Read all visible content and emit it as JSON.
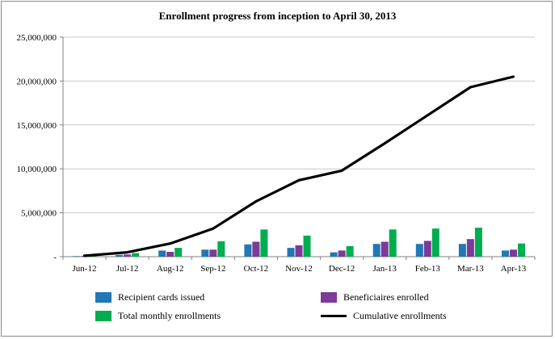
{
  "title": "Enrollment progress from inception to April 30, 2013",
  "colors": {
    "blue": "#2277b4",
    "purple": "#7c3a99",
    "green": "#00ad4f",
    "black": "#000000",
    "grid": "#c9c9c9",
    "axis": "#808080",
    "border": "#8a8a8a"
  },
  "chart_data": {
    "type": "bar",
    "subtype": "grouped bars with cumulative line overlay",
    "title": "Enrollment progress from inception to April 30, 2013",
    "xlabel": "",
    "ylabel": "",
    "ylim": [
      0,
      25000000
    ],
    "grid": true,
    "legend_position": "bottom",
    "categories": [
      "Jun-12",
      "Jul-12",
      "Aug-12",
      "Sep-12",
      "Oct-12",
      "Nov-12",
      "Dec-12",
      "Jan-13",
      "Feb-13",
      "Mar-13",
      "Apr-13"
    ],
    "series": [
      {
        "name": "Recipient cards issued",
        "key": "recipient-cards-issued",
        "color": "#2277b4",
        "values": [
          60000,
          200000,
          700000,
          800000,
          1400000,
          1000000,
          500000,
          1450000,
          1450000,
          1450000,
          700000
        ]
      },
      {
        "name": "Beneficiaires enrolled",
        "key": "beneficiaries-enrolled",
        "color": "#7c3a99",
        "values": [
          70000,
          250000,
          550000,
          800000,
          1700000,
          1300000,
          700000,
          1700000,
          1800000,
          2000000,
          800000
        ]
      },
      {
        "name": "Total monthly enrollments",
        "key": "total-monthly-enrollments",
        "color": "#00ad4f",
        "values": [
          120000,
          400000,
          1000000,
          1750000,
          3100000,
          2400000,
          1200000,
          3100000,
          3200000,
          3300000,
          1500000
        ]
      }
    ],
    "line": {
      "name": "Cumulative enrollments",
      "key": "cumulative-enrollments",
      "color": "#000000",
      "values": [
        100000,
        500000,
        1500000,
        3200000,
        6300000,
        8700000,
        9800000,
        12900000,
        16100000,
        19300000,
        20500000
      ]
    },
    "yticks": [
      {
        "value": 0,
        "label": "-"
      },
      {
        "value": 5000000,
        "label": "5,000,000"
      },
      {
        "value": 10000000,
        "label": "10,000,000"
      },
      {
        "value": 15000000,
        "label": "15,000,000"
      },
      {
        "value": 20000000,
        "label": "20,000,000"
      },
      {
        "value": 25000000,
        "label": "25,000,000"
      }
    ]
  },
  "legend": {
    "items": [
      {
        "label": "Recipient cards issued",
        "color": "#2277b4",
        "type": "box"
      },
      {
        "label": "Beneficiaires enrolled",
        "color": "#7c3a99",
        "type": "box"
      },
      {
        "label": "Total monthly enrollments",
        "color": "#00ad4f",
        "type": "box"
      },
      {
        "label": "Cumulative enrollments",
        "color": "#000000",
        "type": "line"
      }
    ]
  }
}
